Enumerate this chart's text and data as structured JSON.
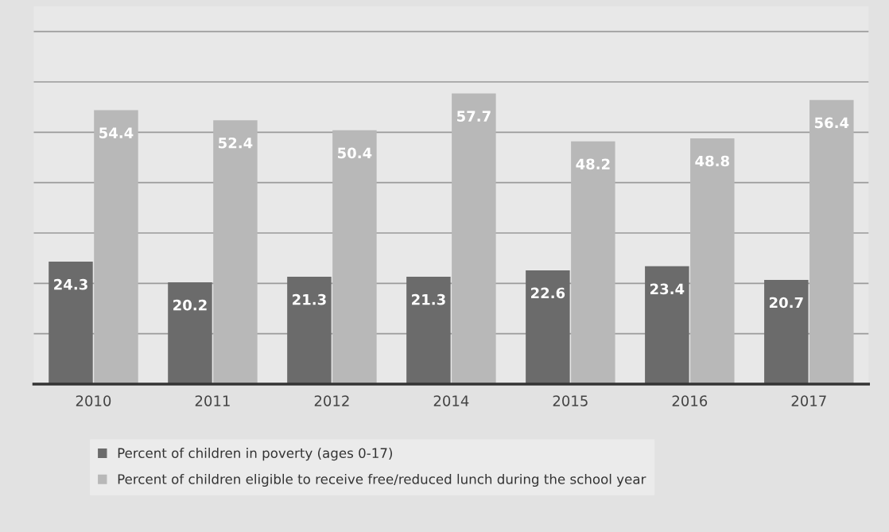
{
  "chart_data": {
    "type": "bar",
    "categories": [
      "2010",
      "2011",
      "2012",
      "2014",
      "2015",
      "2016",
      "2017"
    ],
    "series": [
      {
        "name": "Percent of children in poverty (ages 0-17)",
        "color": "#6b6b6b",
        "values": [
          24.3,
          20.2,
          21.3,
          21.3,
          22.6,
          23.4,
          20.7
        ]
      },
      {
        "name": "Percent of children eligible to receive free/reduced lunch during the school year",
        "color": "#b8b8b8",
        "values": [
          54.4,
          52.4,
          50.4,
          57.7,
          48.2,
          48.8,
          56.4
        ]
      }
    ],
    "ylim": [
      0,
      75
    ],
    "yticks": [
      {
        "value": 0,
        "label": null
      },
      {
        "value": 10,
        "label": null
      },
      {
        "value": 20,
        "label": null
      },
      {
        "value": 30,
        "label": null
      },
      {
        "value": 40,
        "label": null
      },
      {
        "value": 50,
        "label": null
      },
      {
        "value": 60,
        "label": null
      },
      {
        "value": 70,
        "label": null
      }
    ],
    "tick_labels": "x",
    "grid": "y",
    "data_labels": true,
    "legend": "bottom"
  }
}
